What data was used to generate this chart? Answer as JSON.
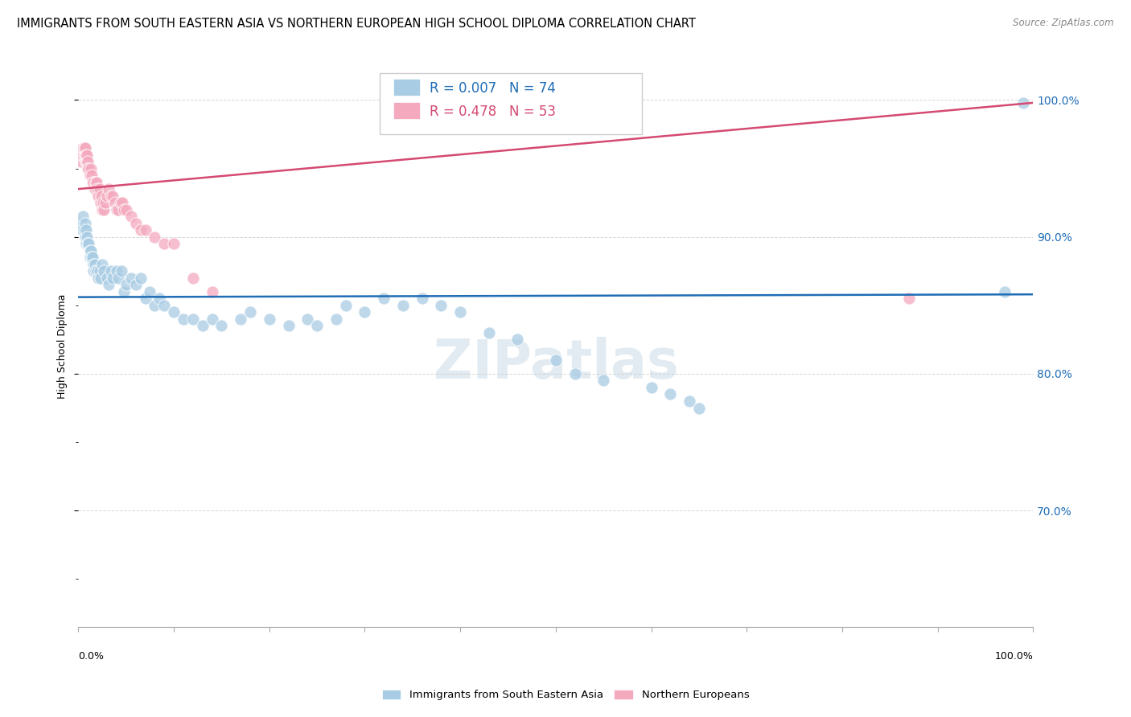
{
  "title": "IMMIGRANTS FROM SOUTH EASTERN ASIA VS NORTHERN EUROPEAN HIGH SCHOOL DIPLOMA CORRELATION CHART",
  "source": "Source: ZipAtlas.com",
  "ylabel": "High School Diploma",
  "watermark": "ZIPatlas",
  "legend_blue_r": "R = 0.007",
  "legend_blue_n": "N = 74",
  "legend_pink_r": "R = 0.478",
  "legend_pink_n": "N = 53",
  "legend_blue_label": "Immigrants from South Eastern Asia",
  "legend_pink_label": "Northern Europeans",
  "blue_color": "#a8cce4",
  "pink_color": "#f4a9be",
  "trend_blue_color": "#1f6db5",
  "trend_pink_color": "#d44a72",
  "xlim": [
    0.0,
    1.0
  ],
  "ylim": [
    0.615,
    1.025
  ],
  "blue_x": [
    0.003,
    0.004,
    0.005,
    0.006,
    0.007,
    0.007,
    0.008,
    0.008,
    0.009,
    0.01,
    0.011,
    0.012,
    0.012,
    0.013,
    0.014,
    0.015,
    0.016,
    0.016,
    0.017,
    0.018,
    0.02,
    0.021,
    0.022,
    0.023,
    0.025,
    0.027,
    0.03,
    0.032,
    0.034,
    0.036,
    0.04,
    0.042,
    0.045,
    0.048,
    0.05,
    0.055,
    0.06,
    0.065,
    0.07,
    0.075,
    0.08,
    0.085,
    0.09,
    0.1,
    0.11,
    0.12,
    0.13,
    0.14,
    0.15,
    0.17,
    0.18,
    0.2,
    0.22,
    0.24,
    0.25,
    0.27,
    0.28,
    0.3,
    0.32,
    0.34,
    0.36,
    0.38,
    0.4,
    0.43,
    0.46,
    0.5,
    0.52,
    0.55,
    0.6,
    0.62,
    0.64,
    0.65,
    0.97,
    0.99
  ],
  "blue_y": [
    0.91,
    0.905,
    0.915,
    0.905,
    0.91,
    0.9,
    0.905,
    0.895,
    0.9,
    0.895,
    0.895,
    0.89,
    0.885,
    0.89,
    0.885,
    0.885,
    0.88,
    0.875,
    0.88,
    0.875,
    0.875,
    0.87,
    0.875,
    0.87,
    0.88,
    0.875,
    0.87,
    0.865,
    0.875,
    0.87,
    0.875,
    0.87,
    0.875,
    0.86,
    0.865,
    0.87,
    0.865,
    0.87,
    0.855,
    0.86,
    0.85,
    0.855,
    0.85,
    0.845,
    0.84,
    0.84,
    0.835,
    0.84,
    0.835,
    0.84,
    0.845,
    0.84,
    0.835,
    0.84,
    0.835,
    0.84,
    0.85,
    0.845,
    0.855,
    0.85,
    0.855,
    0.85,
    0.845,
    0.83,
    0.825,
    0.81,
    0.8,
    0.795,
    0.79,
    0.785,
    0.78,
    0.775,
    0.86,
    0.998
  ],
  "pink_x": [
    0.003,
    0.004,
    0.005,
    0.005,
    0.006,
    0.006,
    0.007,
    0.007,
    0.008,
    0.008,
    0.009,
    0.009,
    0.01,
    0.01,
    0.011,
    0.012,
    0.013,
    0.014,
    0.015,
    0.016,
    0.017,
    0.018,
    0.019,
    0.02,
    0.021,
    0.022,
    0.023,
    0.024,
    0.025,
    0.026,
    0.027,
    0.028,
    0.03,
    0.032,
    0.034,
    0.036,
    0.038,
    0.04,
    0.042,
    0.044,
    0.046,
    0.048,
    0.05,
    0.055,
    0.06,
    0.065,
    0.07,
    0.08,
    0.09,
    0.1,
    0.12,
    0.14,
    0.87
  ],
  "pink_y": [
    0.955,
    0.96,
    0.96,
    0.965,
    0.96,
    0.965,
    0.96,
    0.965,
    0.955,
    0.96,
    0.955,
    0.96,
    0.955,
    0.95,
    0.95,
    0.945,
    0.95,
    0.945,
    0.94,
    0.94,
    0.935,
    0.94,
    0.94,
    0.935,
    0.93,
    0.935,
    0.925,
    0.93,
    0.92,
    0.925,
    0.92,
    0.925,
    0.93,
    0.935,
    0.93,
    0.93,
    0.925,
    0.92,
    0.92,
    0.925,
    0.925,
    0.92,
    0.92,
    0.915,
    0.91,
    0.905,
    0.905,
    0.9,
    0.895,
    0.895,
    0.87,
    0.86,
    0.855
  ],
  "blue_trend_x": [
    0.0,
    1.0
  ],
  "blue_trend_y": [
    0.856,
    0.858
  ],
  "pink_trend_x": [
    0.0,
    1.0
  ],
  "pink_trend_y": [
    0.935,
    0.998
  ],
  "grid_color": "#cccccc",
  "watermark_color": "#d0dfe8",
  "watermark_alpha": 0.6
}
